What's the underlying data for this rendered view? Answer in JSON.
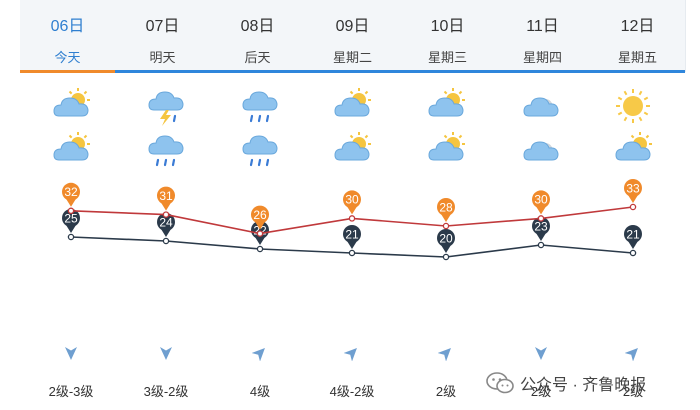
{
  "days": [
    {
      "date": "06日",
      "label": "今天",
      "active": true,
      "icon_day": "cloudy-sun-icon",
      "icon_night": "cloudy-sun-icon",
      "high": 32,
      "low": 25,
      "wind_dir": "down",
      "wind": "2级-3级"
    },
    {
      "date": "07日",
      "label": "明天",
      "active": false,
      "icon_day": "thunder-rain-icon",
      "icon_night": "rain-icon",
      "high": 31,
      "low": 24,
      "wind_dir": "down",
      "wind": "3级-2级"
    },
    {
      "date": "08日",
      "label": "后天",
      "active": false,
      "icon_day": "rain-icon",
      "icon_night": "rain-icon",
      "high": 26,
      "low": 22,
      "wind_dir": "up-right",
      "wind": "4级"
    },
    {
      "date": "09日",
      "label": "星期二",
      "active": false,
      "icon_day": "cloudy-sun-icon",
      "icon_night": "cloudy-sun-icon",
      "high": 30,
      "low": 21,
      "wind_dir": "up-right",
      "wind": "4级-2级"
    },
    {
      "date": "10日",
      "label": "星期三",
      "active": false,
      "icon_day": "cloudy-sun-icon",
      "icon_night": "cloudy-sun-icon",
      "high": 28,
      "low": 20,
      "wind_dir": "up-right",
      "wind": "2级"
    },
    {
      "date": "11日",
      "label": "星期四",
      "active": false,
      "icon_day": "cloudy-icon",
      "icon_night": "cloudy-icon",
      "high": 30,
      "low": 23,
      "wind_dir": "down",
      "wind": "2级"
    },
    {
      "date": "12日",
      "label": "星期五",
      "active": false,
      "icon_day": "sunny-icon",
      "icon_night": "cloudy-sun-icon",
      "high": 33,
      "low": 21,
      "wind_dir": "up-right",
      "wind": "2级"
    }
  ],
  "watermark": "公众号 · 齐鲁晚报",
  "colors": {
    "active_tab": "#f08a2b",
    "tab_underline": "#2f86dc",
    "high_line": "#c0393b",
    "high_badge": "#f08a2b",
    "low_line": "#2b3a4a",
    "low_badge": "#2b3a4a",
    "arrow": "#6f9fd0"
  }
}
